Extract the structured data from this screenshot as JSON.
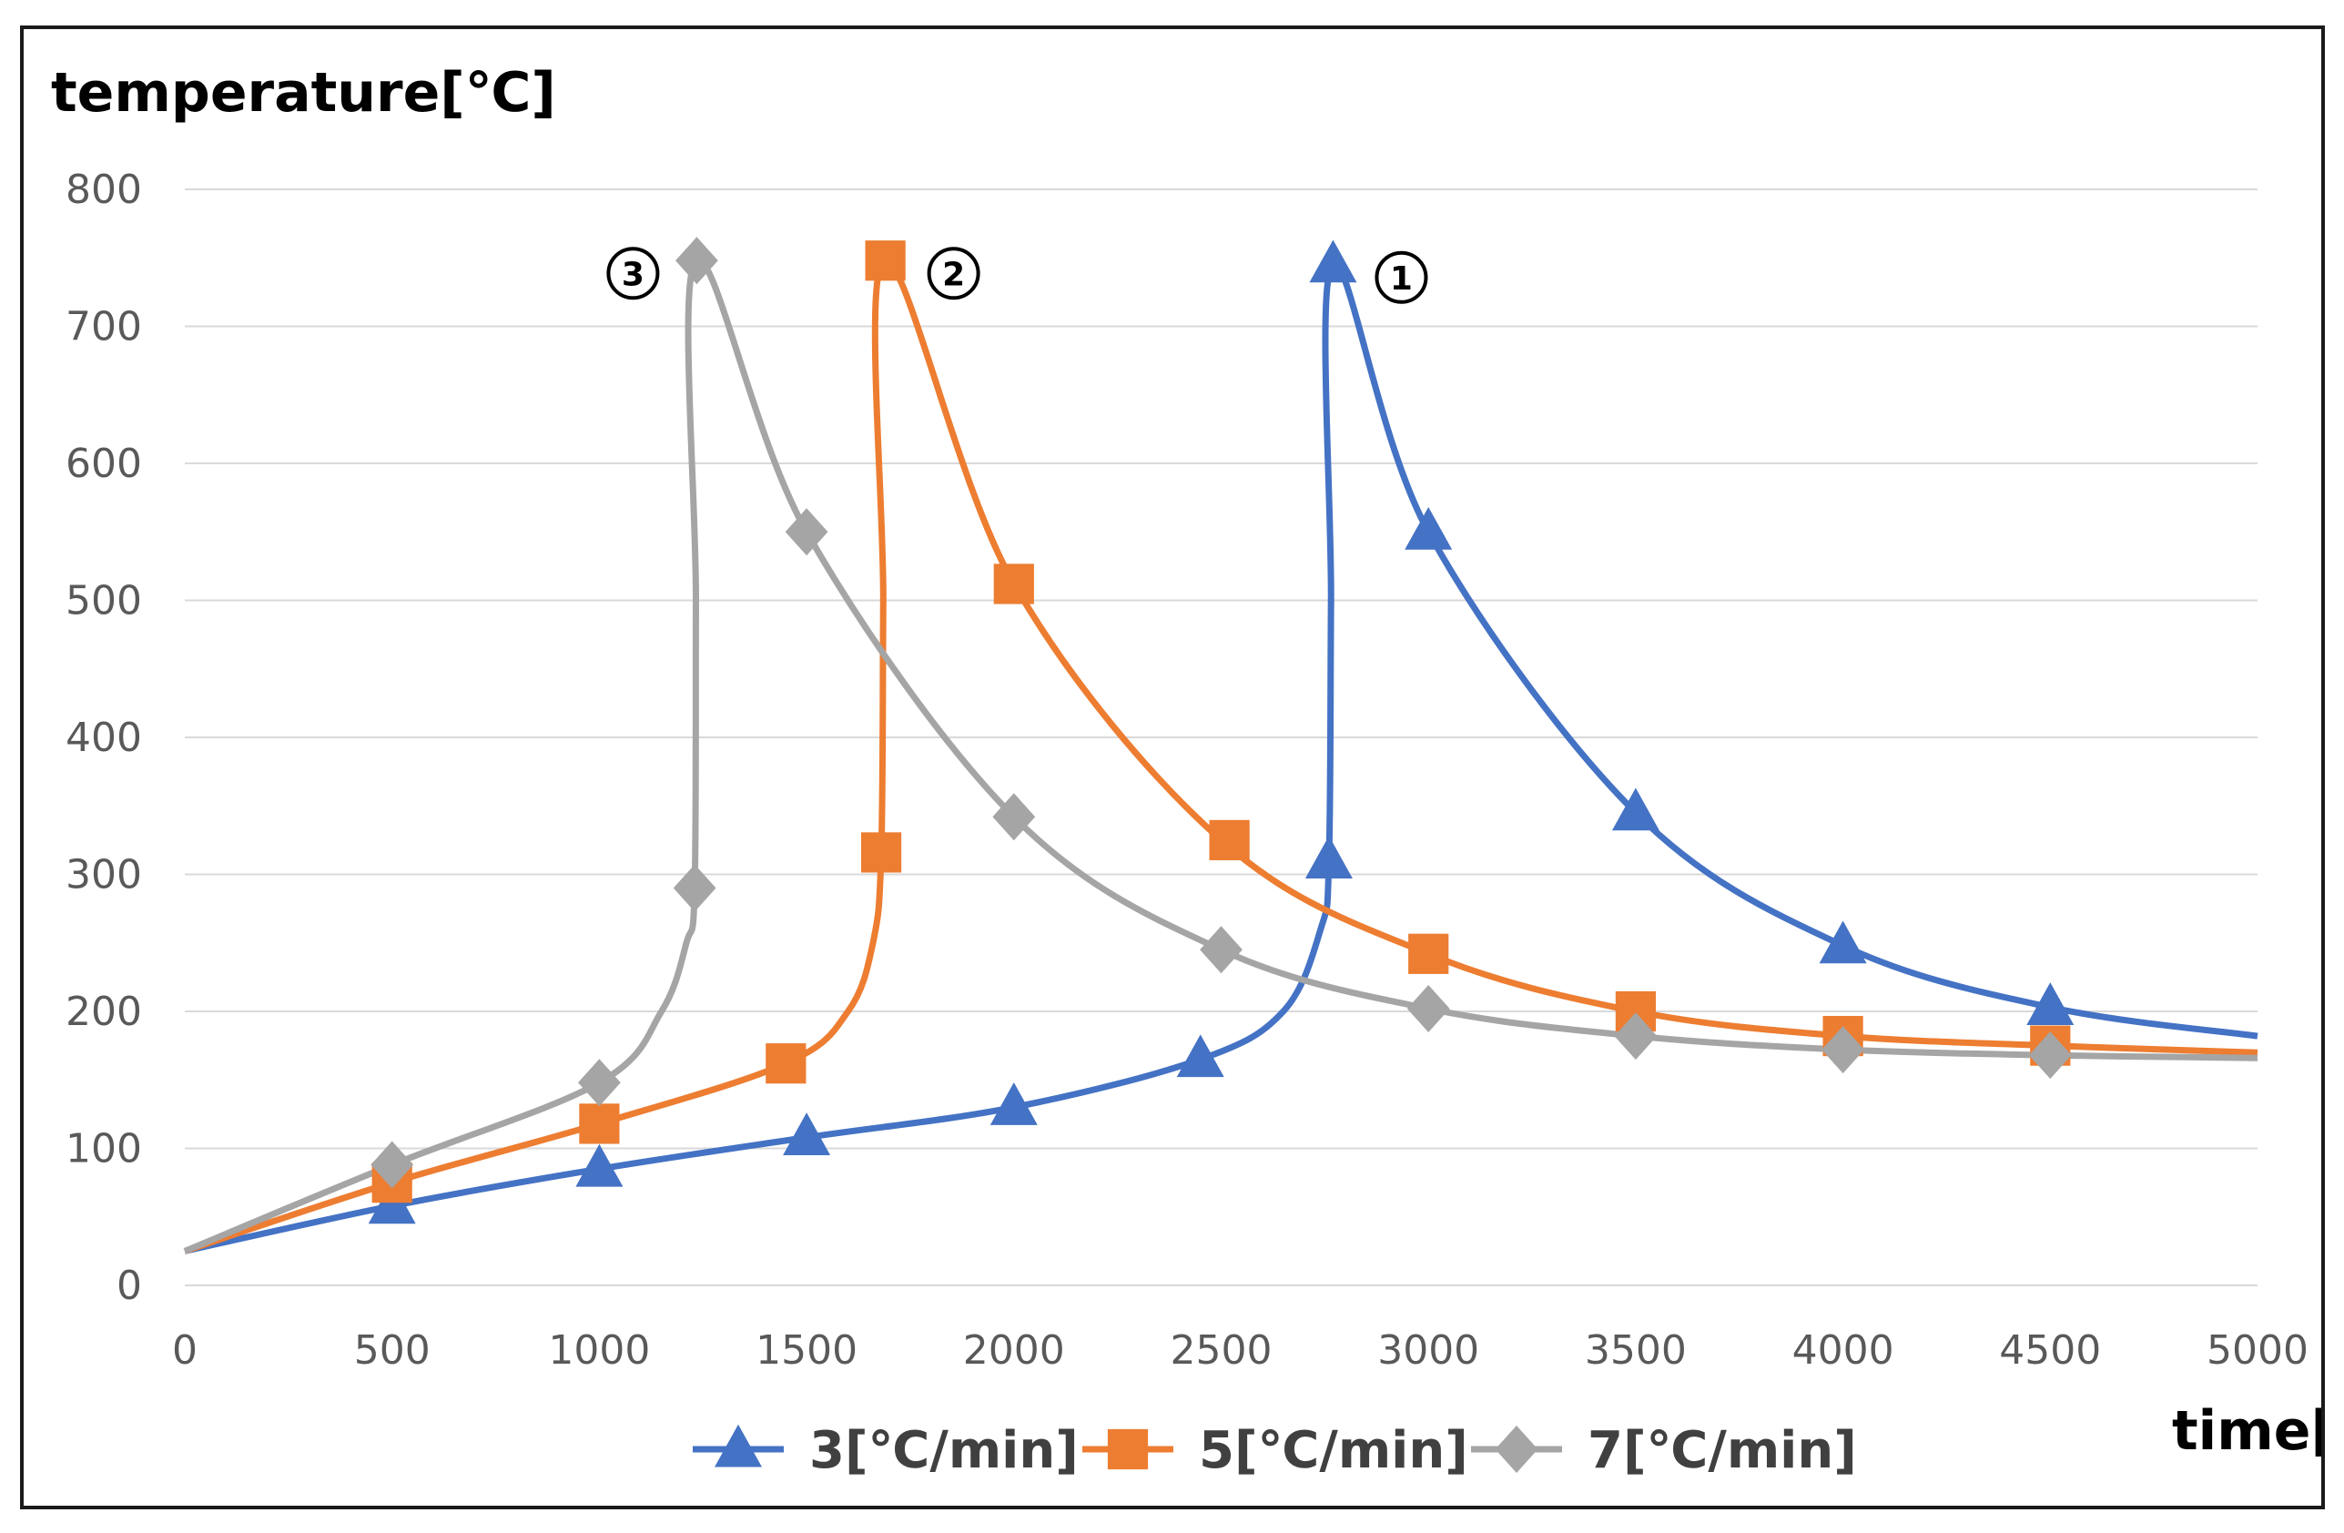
{
  "chart_data": {
    "type": "line",
    "ylabel": "temperature[℃]",
    "xlabel": "time[s]",
    "xlim": [
      0,
      5000
    ],
    "ylim": [
      0,
      800
    ],
    "x_ticks": [
      "0",
      "500",
      "1000",
      "1500",
      "2000",
      "2500",
      "3000",
      "3500",
      "4000",
      "4500",
      "5000"
    ],
    "y_ticks": [
      "0",
      "100",
      "200",
      "300",
      "400",
      "500",
      "600",
      "700",
      "800"
    ],
    "grid": "horizontal",
    "legend_position": "bottom",
    "series": [
      {
        "name": "3[℃/min]",
        "color": "#4472C4",
        "marker": "triangle",
        "points": [
          [
            0,
            25
          ],
          [
            500,
            58
          ],
          [
            1000,
            85
          ],
          [
            1500,
            108
          ],
          [
            2000,
            130
          ],
          [
            2450,
            165
          ],
          [
            2650,
            200
          ],
          [
            2740,
            260
          ],
          [
            2760,
            310
          ],
          [
            2765,
            500
          ],
          [
            2770,
            745
          ],
          [
            3000,
            550
          ],
          [
            3500,
            345
          ],
          [
            4000,
            248
          ],
          [
            4500,
            203
          ],
          [
            5000,
            182
          ]
        ],
        "marker_points": [
          [
            500,
            58
          ],
          [
            1000,
            85
          ],
          [
            1500,
            108
          ],
          [
            2000,
            130
          ],
          [
            2450,
            165
          ],
          [
            2760,
            310
          ],
          [
            2770,
            745
          ],
          [
            3000,
            550
          ],
          [
            3500,
            345
          ],
          [
            4000,
            248
          ],
          [
            4500,
            203
          ]
        ]
      },
      {
        "name": "5[℃/min]",
        "color": "#ED7D31",
        "marker": "square",
        "points": [
          [
            0,
            25
          ],
          [
            500,
            75
          ],
          [
            1000,
            118
          ],
          [
            1450,
            162
          ],
          [
            1600,
            200
          ],
          [
            1660,
            250
          ],
          [
            1680,
            316
          ],
          [
            1685,
            500
          ],
          [
            1690,
            748
          ],
          [
            2000,
            512
          ],
          [
            2500,
            325
          ],
          [
            3000,
            242
          ],
          [
            3500,
            200
          ],
          [
            4000,
            182
          ],
          [
            4500,
            175
          ],
          [
            5000,
            170
          ]
        ],
        "marker_points": [
          [
            500,
            75
          ],
          [
            1000,
            118
          ],
          [
            1450,
            162
          ],
          [
            1680,
            316
          ],
          [
            1690,
            748
          ],
          [
            2000,
            512
          ],
          [
            2520,
            325
          ],
          [
            3000,
            242
          ],
          [
            3500,
            200
          ],
          [
            4000,
            182
          ],
          [
            4500,
            175
          ]
        ]
      },
      {
        "name": "7[℃/min]",
        "color": "#A5A5A5",
        "marker": "diamond",
        "points": [
          [
            0,
            25
          ],
          [
            500,
            88
          ],
          [
            1000,
            148
          ],
          [
            1150,
            200
          ],
          [
            1210,
            250
          ],
          [
            1230,
            290
          ],
          [
            1233,
            500
          ],
          [
            1235,
            748
          ],
          [
            1500,
            550
          ],
          [
            2000,
            342
          ],
          [
            2500,
            245
          ],
          [
            3000,
            202
          ],
          [
            3500,
            182
          ],
          [
            4000,
            172
          ],
          [
            4500,
            168
          ],
          [
            5000,
            166
          ]
        ],
        "marker_points": [
          [
            500,
            88
          ],
          [
            1000,
            148
          ],
          [
            1230,
            290
          ],
          [
            1235,
            748
          ],
          [
            1500,
            550
          ],
          [
            2000,
            342
          ],
          [
            2500,
            245
          ],
          [
            3000,
            202
          ],
          [
            3500,
            182
          ],
          [
            4000,
            172
          ],
          [
            4500,
            168
          ]
        ]
      }
    ],
    "annotations": [
      {
        "label": "③",
        "x": 1235,
        "y": 748
      },
      {
        "label": "②",
        "x": 1690,
        "y": 748
      },
      {
        "label": "①",
        "x": 2770,
        "y": 745
      }
    ]
  }
}
